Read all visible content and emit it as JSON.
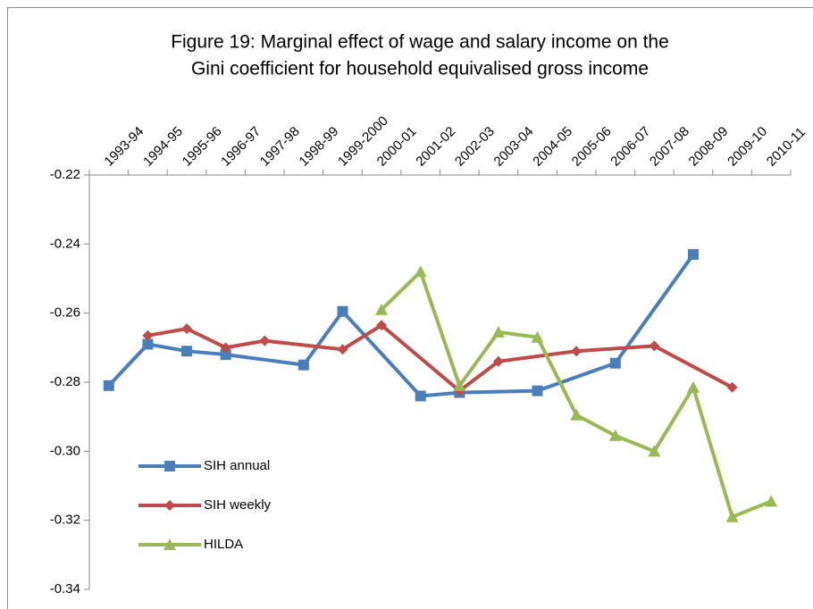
{
  "chart_data": {
    "type": "line",
    "title": [
      "Figure 19: Marginal effect of wage and salary income on the",
      "Gini coefficient for household equivalised gross income"
    ],
    "categories": [
      "1993-94",
      "1994-95",
      "1995-96",
      "1996-97",
      "1997-98",
      "1998-99",
      "1999-2000",
      "2000-01",
      "2001-02",
      "2002-03",
      "2003-04",
      "2004-05",
      "2005-06",
      "2006-07",
      "2007-08",
      "2008-09",
      "2009-10",
      "2010-11"
    ],
    "ylim": [
      -0.34,
      -0.22
    ],
    "yticks": [
      -0.22,
      -0.24,
      -0.26,
      -0.28,
      {
        "value": -0.3,
        "label": "-0.30"
      },
      -0.32,
      -0.34
    ],
    "legend": "lower left",
    "series": [
      {
        "name": "SIH annual",
        "color": "#4a7ebb",
        "marker": "square",
        "x": [
          "1993-94",
          "1994-95",
          "1995-96",
          "1996-97",
          "1998-99",
          "1999-2000",
          "2001-02",
          "2002-03",
          "2004-05",
          "2006-07",
          "2008-09"
        ],
        "values": [
          -0.281,
          -0.269,
          -0.271,
          -0.272,
          -0.275,
          -0.2595,
          -0.284,
          -0.283,
          -0.2825,
          -0.2745,
          -0.243
        ]
      },
      {
        "name": "SIH weekly",
        "color": "#be4b48",
        "marker": "diamond",
        "x": [
          "1994-95",
          "1995-96",
          "1996-97",
          "1997-98",
          "1999-2000",
          "2000-01",
          "2002-03",
          "2003-04",
          "2005-06",
          "2007-08",
          "2009-10"
        ],
        "values": [
          -0.2665,
          -0.2645,
          -0.27,
          -0.268,
          -0.2705,
          -0.2635,
          -0.2825,
          -0.274,
          -0.271,
          -0.2695,
          -0.2815
        ]
      },
      {
        "name": "HILDA",
        "color": "#98b954",
        "marker": "triangle",
        "x": [
          "2000-01",
          "2001-02",
          "2002-03",
          "2003-04",
          "2004-05",
          "2005-06",
          "2006-07",
          "2007-08",
          "2008-09",
          "2009-10",
          "2010-11"
        ],
        "values": [
          -0.259,
          -0.248,
          -0.281,
          -0.2655,
          -0.267,
          -0.2895,
          -0.2955,
          -0.3,
          -0.2815,
          -0.319,
          -0.3145
        ]
      }
    ]
  }
}
